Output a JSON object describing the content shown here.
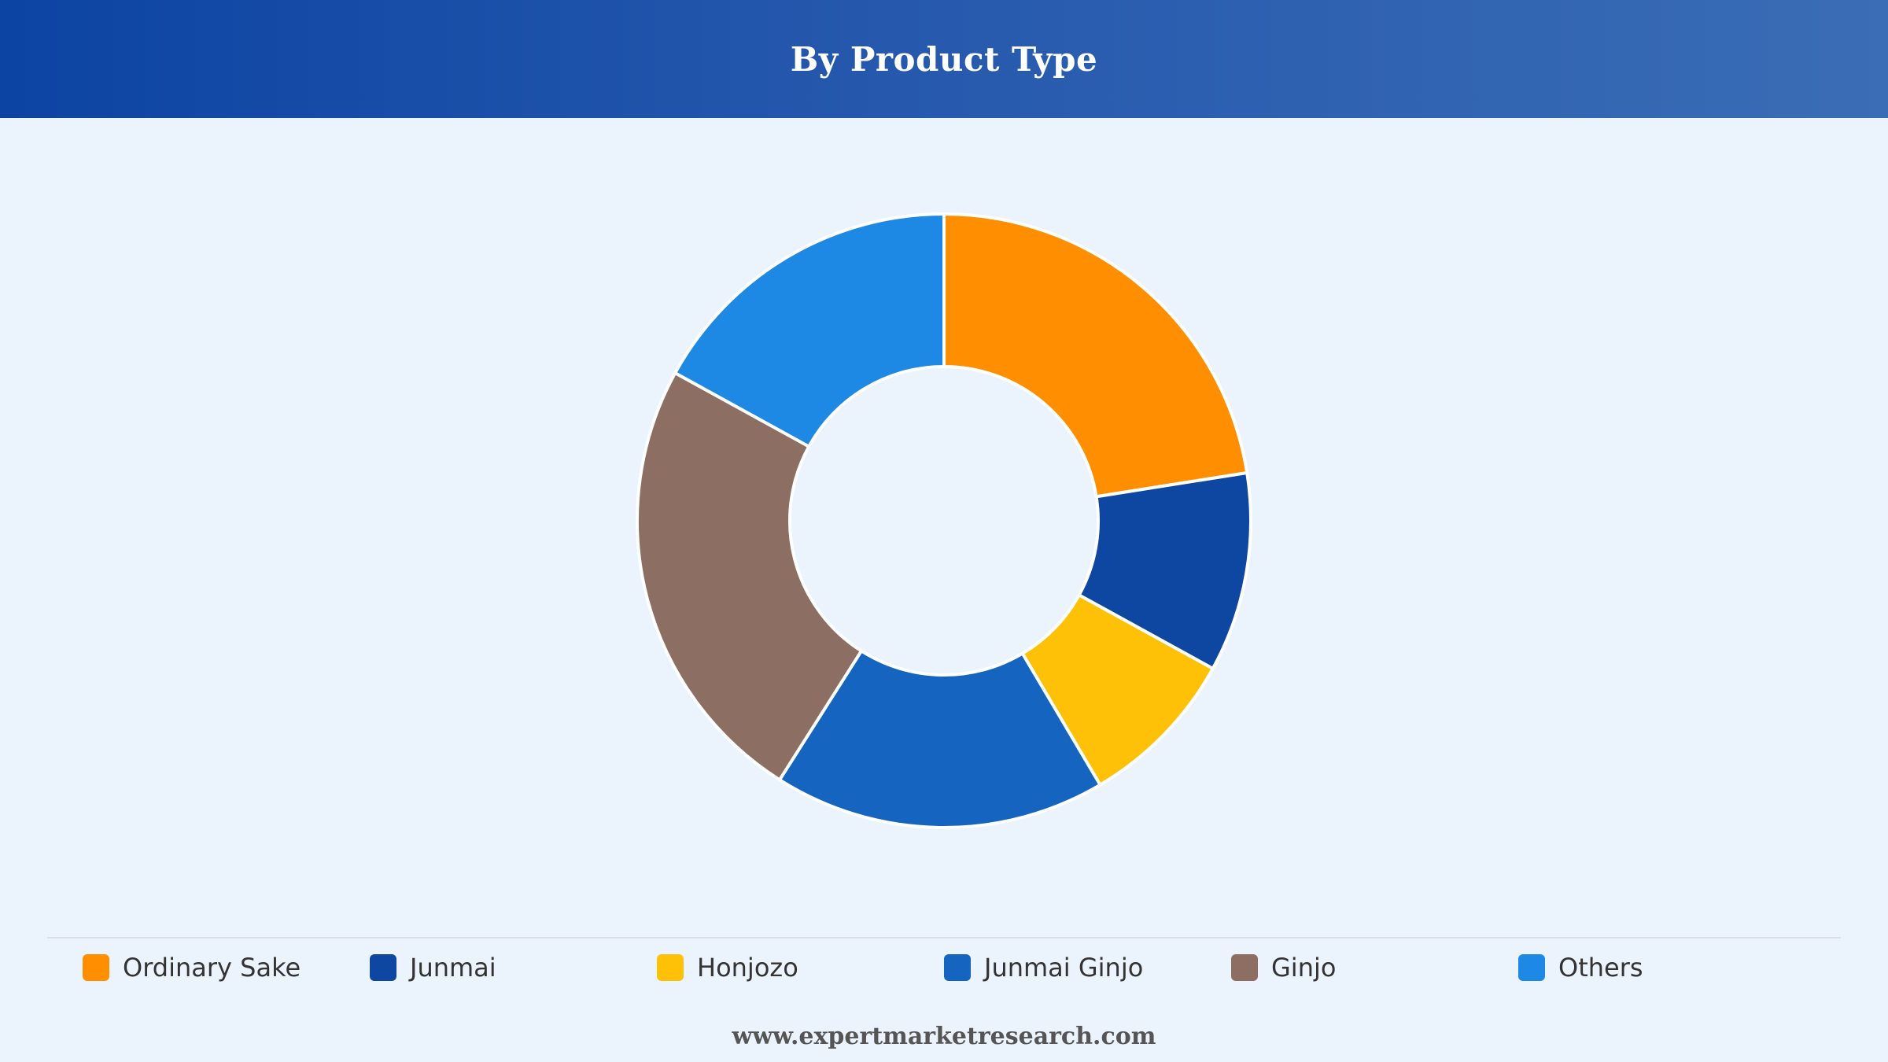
{
  "header": {
    "title": "By Product Type"
  },
  "chart_data": {
    "type": "pie",
    "subtype": "donut",
    "title": "By Product Type",
    "categories": [
      "Ordinary Sake",
      "Junmai",
      "Honjozo",
      "Junmai Ginjo",
      "Ginjo",
      "Others"
    ],
    "values": [
      22.5,
      10.5,
      8.5,
      17.5,
      24.0,
      17.0
    ],
    "unit": "%",
    "colors": [
      "#ff8f00",
      "#0d47a1",
      "#ffc107",
      "#1565c0",
      "#8d6e63",
      "#1e88e5"
    ],
    "legend_position": "bottom",
    "start": "top",
    "direction": "clockwise"
  },
  "footer": {
    "source": "www.expertmarketresearch.com"
  }
}
